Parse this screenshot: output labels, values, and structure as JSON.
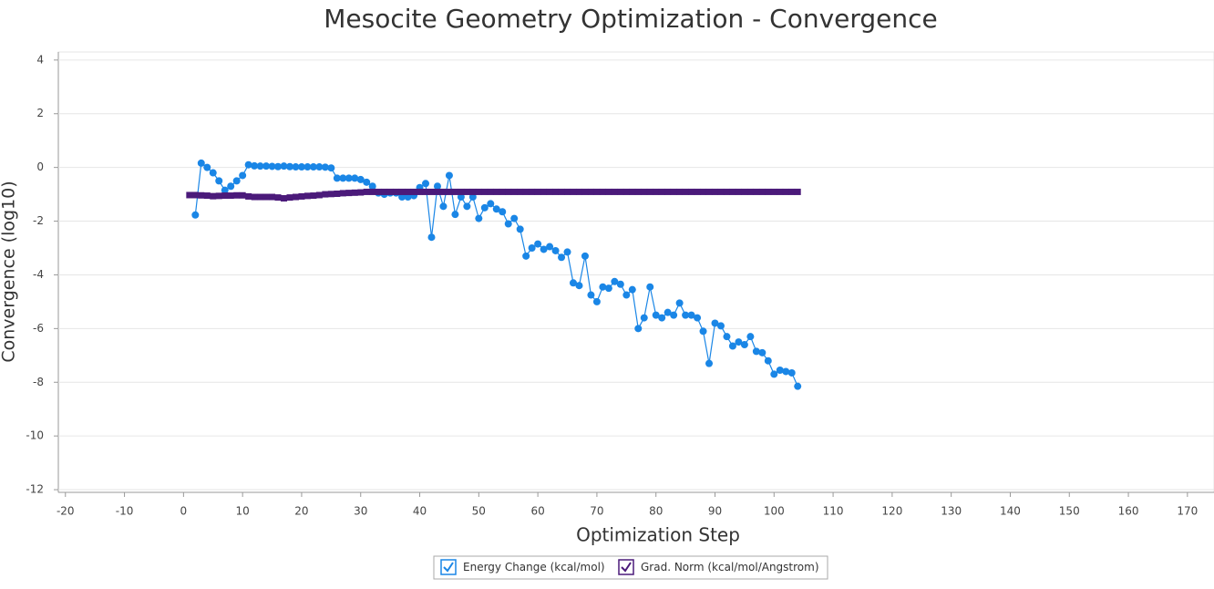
{
  "chart_data": {
    "type": "line",
    "title": "Mesocite Geometry Optimization - Convergence",
    "xlabel": "Optimization Step",
    "ylabel": "Convergence (log10)",
    "xlim": [
      -21.2,
      174.5
    ],
    "ylim": [
      -12.1,
      4.3
    ],
    "xticks": [
      -20,
      -10,
      0,
      10,
      20,
      30,
      40,
      50,
      60,
      70,
      80,
      90,
      100,
      110,
      120,
      130,
      140,
      150,
      160,
      170
    ],
    "yticks": [
      -12,
      -10,
      -8,
      -6,
      -4,
      -2,
      0,
      2,
      4
    ],
    "grid": true,
    "legend": "bottom",
    "series": [
      {
        "name": "Energy Change (kcal/mol)",
        "color": "#1a86e6",
        "marker": "circle",
        "x": [
          2,
          3,
          4,
          5,
          6,
          7,
          8,
          9,
          10,
          11,
          12,
          13,
          14,
          15,
          16,
          17,
          18,
          19,
          20,
          21,
          22,
          23,
          24,
          25,
          26,
          27,
          28,
          29,
          30,
          31,
          32,
          33,
          34,
          35,
          36,
          37,
          38,
          39,
          40,
          41,
          42,
          43,
          44,
          45,
          46,
          47,
          48,
          49,
          50,
          51,
          52,
          53,
          54,
          55,
          56,
          57,
          58,
          59,
          60,
          61,
          62,
          63,
          64,
          65,
          66,
          67,
          68,
          69,
          70,
          71,
          72,
          73,
          74,
          75,
          76,
          77,
          78,
          79,
          80,
          81,
          82,
          83,
          84,
          85,
          86,
          87,
          88,
          89,
          90,
          91,
          92,
          93,
          94,
          95,
          96,
          97,
          98,
          99,
          100,
          101,
          102,
          103,
          104
        ],
        "values": [
          -1.77,
          0.16,
          0,
          -0.2,
          -0.5,
          -0.85,
          -0.7,
          -0.5,
          -0.3,
          0.1,
          0.06,
          0.05,
          0.05,
          0.04,
          0.03,
          0.05,
          0.03,
          0.02,
          0.02,
          0.02,
          0.02,
          0.02,
          0.01,
          -0.02,
          -0.4,
          -0.4,
          -0.4,
          -0.4,
          -0.45,
          -0.55,
          -0.7,
          -0.95,
          -1.0,
          -0.95,
          -0.95,
          -1.1,
          -1.1,
          -1.05,
          -0.75,
          -0.6,
          -2.6,
          -0.7,
          -1.45,
          -0.3,
          -1.75,
          -1.1,
          -1.45,
          -1.1,
          -1.9,
          -1.5,
          -1.35,
          -1.55,
          -1.65,
          -2.1,
          -1.9,
          -2.3,
          -3.3,
          -3.0,
          -2.85,
          -3.05,
          -2.95,
          -3.1,
          -3.35,
          -3.15,
          -4.3,
          -4.4,
          -3.3,
          -4.75,
          -5.0,
          -4.45,
          -4.5,
          -4.25,
          -4.35,
          -4.75,
          -4.55,
          -6.0,
          -5.6,
          -4.45,
          -5.5,
          -5.6,
          -5.4,
          -5.5,
          -5.05,
          -5.5,
          -5.5,
          -5.6,
          -6.1,
          -7.3,
          -5.8,
          -5.9,
          -6.3,
          -6.65,
          -6.5,
          -6.6,
          -6.3,
          -6.85,
          -6.9,
          -7.2,
          -7.7,
          -7.55,
          -7.6,
          -7.65,
          -8.15
        ]
      },
      {
        "name": "Grad. Norm (kcal/mol/Angstrom)",
        "color": "#4b1a7a",
        "marker": "square",
        "x": [
          1,
          2,
          3,
          4,
          5,
          6,
          7,
          8,
          9,
          10,
          11,
          12,
          13,
          14,
          15,
          16,
          17,
          18,
          19,
          20,
          21,
          22,
          23,
          24,
          25,
          26,
          27,
          28,
          29,
          30,
          31,
          32,
          33,
          34,
          35,
          36,
          37,
          38,
          39,
          40,
          41,
          42,
          43,
          44,
          45,
          46,
          47,
          48,
          49,
          50,
          51,
          52,
          53,
          54,
          55,
          56,
          57,
          58,
          59,
          60,
          61,
          62,
          63,
          64,
          65,
          66,
          67,
          68,
          69,
          70,
          71,
          72,
          73,
          74,
          75,
          76,
          77,
          78,
          79,
          80,
          81,
          82,
          83,
          84,
          85,
          86,
          87,
          88,
          89,
          90,
          91,
          92,
          93,
          94,
          95,
          96,
          97,
          98,
          99,
          100,
          101,
          102,
          103,
          104
        ],
        "values": [
          -1.03,
          -1.03,
          -1.04,
          -1.05,
          -1.07,
          -1.06,
          -1.05,
          -1.05,
          -1.04,
          -1.04,
          -1.08,
          -1.1,
          -1.1,
          -1.1,
          -1.1,
          -1.12,
          -1.15,
          -1.12,
          -1.1,
          -1.08,
          -1.06,
          -1.05,
          -1.03,
          -1.0,
          -0.99,
          -0.98,
          -0.96,
          -0.95,
          -0.94,
          -0.93,
          -0.91,
          -0.91,
          -0.91,
          -0.91,
          -0.91,
          -0.91,
          -0.91,
          -0.91,
          -0.91,
          -0.91,
          -0.91,
          -0.91,
          -0.91,
          -0.91,
          -0.91,
          -0.91,
          -0.91,
          -0.91,
          -0.91,
          -0.91,
          -0.91,
          -0.91,
          -0.91,
          -0.91,
          -0.91,
          -0.91,
          -0.91,
          -0.91,
          -0.91,
          -0.91,
          -0.91,
          -0.91,
          -0.91,
          -0.91,
          -0.91,
          -0.91,
          -0.91,
          -0.91,
          -0.91,
          -0.91,
          -0.91,
          -0.91,
          -0.91,
          -0.91,
          -0.91,
          -0.91,
          -0.91,
          -0.91,
          -0.91,
          -0.91,
          -0.91,
          -0.91,
          -0.91,
          -0.91,
          -0.91,
          -0.91,
          -0.91,
          -0.91,
          -0.91,
          -0.91,
          -0.91,
          -0.91,
          -0.91,
          -0.91,
          -0.91,
          -0.91,
          -0.91,
          -0.91,
          -0.91,
          -0.91,
          -0.91,
          -0.91,
          -0.91,
          -0.91
        ]
      }
    ]
  }
}
